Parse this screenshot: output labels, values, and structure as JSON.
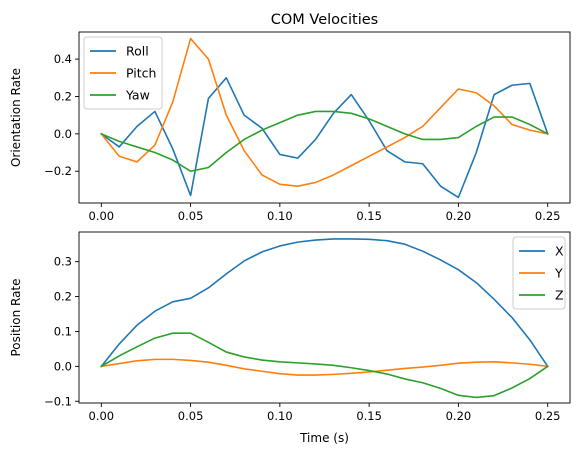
{
  "chart_data": [
    {
      "type": "line",
      "title": "COM Velocities",
      "xlabel": "",
      "ylabel": "Orientation Rate",
      "xlim": [
        -0.0125,
        0.2625
      ],
      "ylim": [
        -0.37,
        0.545
      ],
      "xticks": [
        0.0,
        0.05,
        0.1,
        0.15,
        0.2,
        0.25
      ],
      "xtick_labels": [
        "0.00",
        "0.05",
        "0.10",
        "0.15",
        "0.20",
        "0.25"
      ],
      "yticks": [
        -0.2,
        0.0,
        0.2,
        0.4
      ],
      "ytick_labels": [
        "−0.2",
        "0.0",
        "0.2",
        "0.4"
      ],
      "grid": false,
      "legend": "upper left",
      "x": [
        0.0,
        0.01,
        0.02,
        0.03,
        0.04,
        0.05,
        0.06,
        0.07,
        0.08,
        0.09,
        0.1,
        0.11,
        0.12,
        0.13,
        0.14,
        0.15,
        0.16,
        0.17,
        0.18,
        0.19,
        0.2,
        0.21,
        0.22,
        0.23,
        0.24,
        0.25
      ],
      "series": [
        {
          "name": "Roll",
          "color": "#1f77b4",
          "values": [
            0.0,
            -0.07,
            0.04,
            0.12,
            -0.08,
            -0.33,
            0.19,
            0.3,
            0.1,
            0.03,
            -0.11,
            -0.13,
            -0.03,
            0.11,
            0.21,
            0.07,
            -0.09,
            -0.15,
            -0.16,
            -0.28,
            -0.34,
            -0.1,
            0.21,
            0.26,
            0.27,
            0.0
          ]
        },
        {
          "name": "Pitch",
          "color": "#ff7f0e",
          "values": [
            0.0,
            -0.12,
            -0.15,
            -0.06,
            0.17,
            0.51,
            0.4,
            0.1,
            -0.09,
            -0.22,
            -0.27,
            -0.28,
            -0.26,
            -0.22,
            -0.17,
            -0.12,
            -0.07,
            -0.02,
            0.04,
            0.14,
            0.24,
            0.22,
            0.15,
            0.05,
            0.02,
            0.0
          ]
        },
        {
          "name": "Yaw",
          "color": "#2ca02c",
          "values": [
            0.0,
            -0.04,
            -0.07,
            -0.1,
            -0.14,
            -0.2,
            -0.18,
            -0.1,
            -0.03,
            0.02,
            0.06,
            0.1,
            0.12,
            0.12,
            0.11,
            0.08,
            0.04,
            0.0,
            -0.03,
            -0.03,
            -0.02,
            0.04,
            0.09,
            0.09,
            0.05,
            0.0
          ]
        }
      ]
    },
    {
      "type": "line",
      "title": "",
      "xlabel": "Time (s)",
      "ylabel": "Position Rate",
      "xlim": [
        -0.0125,
        0.2625
      ],
      "ylim": [
        -0.105,
        0.385
      ],
      "xticks": [
        0.0,
        0.05,
        0.1,
        0.15,
        0.2,
        0.25
      ],
      "xtick_labels": [
        "0.00",
        "0.05",
        "0.10",
        "0.15",
        "0.20",
        "0.25"
      ],
      "yticks": [
        -0.1,
        0.0,
        0.1,
        0.2,
        0.3
      ],
      "ytick_labels": [
        "−0.1",
        "0.0",
        "0.1",
        "0.2",
        "0.3"
      ],
      "grid": false,
      "legend": "upper right",
      "x": [
        0.0,
        0.01,
        0.02,
        0.03,
        0.04,
        0.05,
        0.06,
        0.07,
        0.08,
        0.09,
        0.1,
        0.11,
        0.12,
        0.13,
        0.14,
        0.15,
        0.16,
        0.17,
        0.18,
        0.19,
        0.2,
        0.21,
        0.22,
        0.23,
        0.24,
        0.25
      ],
      "series": [
        {
          "name": "X",
          "color": "#1f77b4",
          "values": [
            0.0,
            0.064,
            0.118,
            0.158,
            0.185,
            0.195,
            0.225,
            0.265,
            0.302,
            0.328,
            0.345,
            0.356,
            0.362,
            0.365,
            0.365,
            0.364,
            0.36,
            0.35,
            0.33,
            0.305,
            0.277,
            0.24,
            0.192,
            0.14,
            0.076,
            0.0
          ]
        },
        {
          "name": "Y",
          "color": "#ff7f0e",
          "values": [
            0.0,
            0.008,
            0.016,
            0.02,
            0.02,
            0.017,
            0.012,
            0.003,
            -0.007,
            -0.014,
            -0.021,
            -0.025,
            -0.025,
            -0.023,
            -0.02,
            -0.016,
            -0.011,
            -0.006,
            -0.002,
            0.003,
            0.009,
            0.012,
            0.013,
            0.01,
            0.006,
            0.0
          ]
        },
        {
          "name": "Z",
          "color": "#2ca02c",
          "values": [
            0.0,
            0.03,
            0.056,
            0.081,
            0.095,
            0.095,
            0.069,
            0.041,
            0.027,
            0.018,
            0.013,
            0.01,
            0.007,
            0.003,
            -0.004,
            -0.012,
            -0.022,
            -0.036,
            -0.047,
            -0.063,
            -0.083,
            -0.089,
            -0.084,
            -0.062,
            -0.035,
            0.0
          ]
        }
      ]
    }
  ]
}
